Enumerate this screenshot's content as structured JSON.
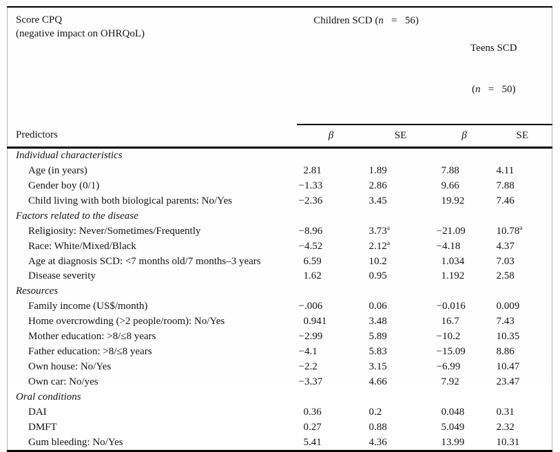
{
  "table": {
    "header": {
      "title_line1": "Score CPQ",
      "title_line2": "(negative impact on OHRQoL)",
      "group1": {
        "prefix": "Children SCD (",
        "n": "n",
        "suffix": "   =   56)"
      },
      "group2": {
        "line1": "Teens SCD",
        "prefix": "(",
        "n": "n",
        "suffix": "   =   50)"
      },
      "predictors_label": "Predictors",
      "stats": [
        "β",
        "SE",
        "β",
        "SE"
      ]
    },
    "rows": [
      {
        "type": "section",
        "label": "Individual characteristics"
      },
      {
        "type": "data",
        "label": "Age (in years)",
        "values": [
          "2.81",
          "1.89",
          "7.88",
          "4.11"
        ]
      },
      {
        "type": "data",
        "label": "Gender boy (0/1)",
        "values": [
          "−1.33",
          "2.86",
          "9.66",
          "7.88"
        ]
      },
      {
        "type": "data",
        "label": "Child living with both biological parents: No/Yes",
        "values": [
          "−2.36",
          "3.45",
          "19.92",
          "7.46"
        ]
      },
      {
        "type": "section",
        "label": "Factors related to the disease"
      },
      {
        "type": "data",
        "label": "Religiosity: Never/Sometimes/Frequently",
        "values": [
          "−8.96",
          {
            "v": "3.73",
            "sup": "a"
          },
          "−21.09",
          {
            "v": "10.78",
            "sup": "a"
          }
        ]
      },
      {
        "type": "data",
        "label": "Race: White/Mixed/Black",
        "values": [
          "−4.52",
          {
            "v": "2.12",
            "sup": "a"
          },
          "−4.18",
          "4.37"
        ]
      },
      {
        "type": "data",
        "label": "Age at diagnosis SCD: <7 months old/7 months–3 years",
        "values": [
          "6.59",
          "10.2",
          "1.034",
          "7.03"
        ]
      },
      {
        "type": "data",
        "label": "Disease severity",
        "values": [
          "1.62",
          "0.95",
          "1.192",
          "2.58"
        ]
      },
      {
        "type": "section",
        "label": "Resources"
      },
      {
        "type": "data",
        "label": "Family income (US$/month)",
        "values": [
          "−.006",
          "0.06",
          "−0.016",
          "0.009"
        ]
      },
      {
        "type": "data",
        "label": "Home overcrowding (>2 people/room): No/Yes",
        "values": [
          "0.941",
          "3.48",
          "16.7",
          "7.43"
        ]
      },
      {
        "type": "data",
        "label": "Mother education: >8/≤8 years",
        "values": [
          "−2.99",
          "5.89",
          "−10.2",
          "10.35"
        ]
      },
      {
        "type": "data",
        "label": "Father education: >8/≤8 years",
        "values": [
          "−4.1",
          "5.83",
          "−15.09",
          "8.86"
        ]
      },
      {
        "type": "data",
        "label": "Own house: No/Yes",
        "values": [
          "−2.2",
          "3.15",
          "−6.99",
          "10.47"
        ]
      },
      {
        "type": "data",
        "label": "Own car: No/yes",
        "values": [
          "−3.37",
          "4.66",
          "7.92",
          "23.47"
        ]
      },
      {
        "type": "section",
        "label": "Oral conditions"
      },
      {
        "type": "data",
        "label": "DAI",
        "values": [
          "0.36",
          "0.2",
          "0.048",
          "0.31"
        ]
      },
      {
        "type": "data",
        "label": "DMFT",
        "values": [
          "0.27",
          "0.88",
          "5.049",
          "2.32"
        ]
      },
      {
        "type": "data",
        "label": "Gum bleeding: No/Yes",
        "values": [
          "5.41",
          "4.36",
          "13.99",
          "10.31"
        ]
      }
    ]
  }
}
